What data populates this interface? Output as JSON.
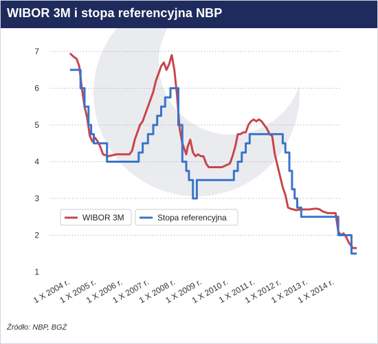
{
  "header": {
    "title": "WIBOR 3M i stopa referencyjna NBP"
  },
  "footer": {
    "source": "Źródło: NBP, BGŻ"
  },
  "colors": {
    "header_bg": "#1f2b5c",
    "wibor": "#c8454b",
    "reference_rate": "#3a73c9"
  },
  "chart_data": {
    "type": "line",
    "title": "WIBOR 3M i stopa referencyjna NBP",
    "xlabel": "",
    "ylabel": "",
    "xlim": [
      2004.0,
      2015.0
    ],
    "ylim": [
      1,
      7
    ],
    "yticks": [
      1,
      2,
      3,
      4,
      5,
      6,
      7
    ],
    "xticks": [
      {
        "value": 2004.75,
        "label": "1 X 2004 r."
      },
      {
        "value": 2005.75,
        "label": "1 X 2005 r."
      },
      {
        "value": 2006.75,
        "label": "1 X 2006 r."
      },
      {
        "value": 2007.75,
        "label": "1 X 2007 r."
      },
      {
        "value": 2008.75,
        "label": "1 X 2008 r."
      },
      {
        "value": 2009.75,
        "label": "1 X 2009 r."
      },
      {
        "value": 2010.75,
        "label": "1 X 2010 r."
      },
      {
        "value": 2011.75,
        "label": "1 X 2011 r."
      },
      {
        "value": 2012.75,
        "label": "1 X 2012 r."
      },
      {
        "value": 2013.75,
        "label": "1 X 2013 r."
      },
      {
        "value": 2014.75,
        "label": "1 X 2014 r."
      }
    ],
    "grid": "horizontal dotted",
    "legend": "center",
    "series": [
      {
        "name": "WIBOR 3M",
        "x": [
          2004.75,
          2004.9,
          2005.0,
          2005.1,
          2005.2,
          2005.3,
          2005.4,
          2005.5,
          2005.6,
          2005.7,
          2005.8,
          2005.9,
          2006.0,
          2006.2,
          2006.5,
          2006.8,
          2007.0,
          2007.1,
          2007.2,
          2007.3,
          2007.4,
          2007.5,
          2007.6,
          2007.7,
          2007.8,
          2007.9,
          2008.0,
          2008.1,
          2008.2,
          2008.3,
          2008.4,
          2008.5,
          2008.6,
          2008.7,
          2008.8,
          2008.9,
          2009.0,
          2009.1,
          2009.15,
          2009.2,
          2009.3,
          2009.4,
          2009.5,
          2009.6,
          2009.7,
          2009.8,
          2009.9,
          2010.0,
          2010.2,
          2010.5,
          2010.8,
          2010.9,
          2011.0,
          2011.1,
          2011.2,
          2011.3,
          2011.4,
          2011.5,
          2011.6,
          2011.7,
          2011.8,
          2011.9,
          2012.0,
          2012.1,
          2012.2,
          2012.3,
          2012.4,
          2012.5,
          2012.6,
          2012.7,
          2012.8,
          2012.9,
          2013.0,
          2013.1,
          2013.2,
          2013.3,
          2013.5,
          2013.8,
          2014.0,
          2014.1,
          2014.2,
          2014.3,
          2014.5,
          2014.8,
          2014.9,
          2015.0,
          2015.1,
          2015.2,
          2015.3,
          2015.45,
          2015.6
        ],
        "values": [
          6.95,
          6.85,
          6.8,
          6.6,
          6.0,
          5.5,
          5.2,
          4.7,
          4.55,
          4.65,
          4.55,
          4.4,
          4.2,
          4.15,
          4.2,
          4.2,
          4.2,
          4.3,
          4.6,
          4.8,
          5.0,
          5.1,
          5.3,
          5.5,
          5.7,
          5.9,
          6.2,
          6.4,
          6.6,
          6.7,
          6.5,
          6.65,
          6.9,
          6.5,
          5.8,
          4.9,
          4.5,
          4.3,
          4.2,
          4.4,
          4.6,
          4.25,
          4.15,
          4.2,
          4.15,
          4.15,
          3.95,
          3.85,
          3.85,
          3.85,
          3.95,
          4.15,
          4.4,
          4.75,
          4.75,
          4.8,
          4.8,
          5.0,
          5.1,
          5.15,
          5.1,
          5.15,
          5.1,
          5.0,
          4.9,
          4.75,
          4.7,
          4.2,
          3.9,
          3.6,
          3.3,
          3.1,
          2.75,
          2.72,
          2.7,
          2.68,
          2.7,
          2.7,
          2.72,
          2.72,
          2.7,
          2.65,
          2.6,
          2.6,
          2.1,
          2.0,
          2.05,
          1.95,
          1.8,
          1.65,
          1.65
        ]
      },
      {
        "name": "Stopa referencyjna",
        "x": [
          2004.75,
          2005.15,
          2005.15,
          2005.3,
          2005.3,
          2005.45,
          2005.45,
          2005.55,
          2005.55,
          2005.65,
          2005.65,
          2006.15,
          2006.15,
          2007.35,
          2007.35,
          2007.5,
          2007.5,
          2007.7,
          2007.7,
          2007.9,
          2007.9,
          2008.05,
          2008.05,
          2008.2,
          2008.2,
          2008.35,
          2008.35,
          2008.55,
          2008.55,
          2008.85,
          2008.85,
          2009.0,
          2009.0,
          2009.15,
          2009.15,
          2009.25,
          2009.25,
          2009.4,
          2009.4,
          2009.55,
          2009.55,
          2010.95,
          2010.95,
          2011.1,
          2011.1,
          2011.25,
          2011.25,
          2011.4,
          2011.4,
          2011.55,
          2011.55,
          2012.8,
          2012.8,
          2012.9,
          2012.9,
          2013.05,
          2013.05,
          2013.15,
          2013.15,
          2013.25,
          2013.25,
          2013.35,
          2013.35,
          2013.5,
          2013.5,
          2014.9,
          2014.9,
          2015.1,
          2015.1,
          2015.4,
          2015.4,
          2015.6
        ],
        "values": [
          6.5,
          6.5,
          6.0,
          6.0,
          5.5,
          5.5,
          5.0,
          5.0,
          4.75,
          4.75,
          4.5,
          4.5,
          4.0,
          4.0,
          4.25,
          4.25,
          4.5,
          4.5,
          4.75,
          4.75,
          5.0,
          5.0,
          5.25,
          5.25,
          5.5,
          5.5,
          5.75,
          5.75,
          6.0,
          6.0,
          5.0,
          5.0,
          4.0,
          4.0,
          3.75,
          3.75,
          3.5,
          3.5,
          3.0,
          3.0,
          3.5,
          3.5,
          3.75,
          3.75,
          4.0,
          4.0,
          4.25,
          4.25,
          4.5,
          4.5,
          4.75,
          4.75,
          4.5,
          4.5,
          4.25,
          4.25,
          3.75,
          3.75,
          3.25,
          3.25,
          3.0,
          3.0,
          2.75,
          2.75,
          2.5,
          2.5,
          2.0,
          2.0,
          2.0,
          2.0,
          1.5,
          1.5
        ]
      }
    ]
  }
}
